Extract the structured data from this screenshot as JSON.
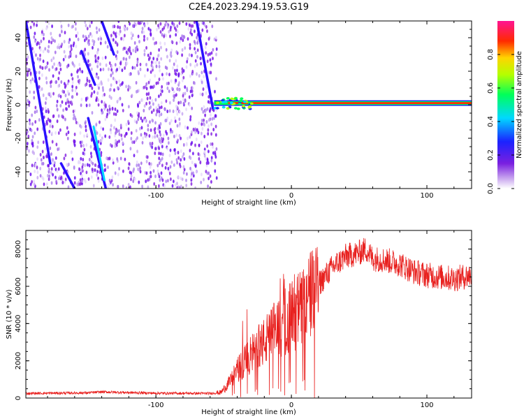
{
  "figure_title": "C2E4.2023.294.19.53.G19",
  "chart_data": [
    {
      "type": "heatmap",
      "xlabel": "Height of straight line (km)",
      "ylabel": "Frequency (Hz)",
      "xlim": [
        -196,
        133
      ],
      "ylim": [
        -50,
        50
      ],
      "x_ticks": [
        -100,
        0,
        100
      ],
      "y_ticks": [
        -40,
        -20,
        0,
        20,
        40
      ],
      "tick_labels_x": [
        "-100",
        "0",
        "100"
      ],
      "tick_labels_y": [
        "-40",
        "-20",
        "0",
        "20",
        "40"
      ],
      "colorbar": {
        "label": "Normalized spectral amplitude",
        "range": [
          0,
          1
        ],
        "ticks": [
          "0.0",
          "0.2",
          "0.4",
          "0.6",
          "0.8"
        ],
        "tick_values": [
          0,
          0.2,
          0.4,
          0.6,
          0.8
        ]
      },
      "noise_region_x": [
        -196,
        -55
      ],
      "streaks": [
        {
          "x": [
            -196,
            -178
          ],
          "y": [
            50,
            -35
          ]
        },
        {
          "x": [
            -170,
            -160
          ],
          "y": [
            -35,
            -50
          ]
        },
        {
          "x": [
            -155,
            -145
          ],
          "y": [
            32,
            12
          ]
        },
        {
          "x": [
            -150,
            -137
          ],
          "y": [
            -8,
            -50
          ]
        },
        {
          "x": [
            -140,
            -131
          ],
          "y": [
            50,
            30
          ]
        },
        {
          "x": [
            -70,
            -58
          ],
          "y": [
            50,
            -2
          ]
        }
      ],
      "carrier": {
        "x": [
          -57,
          133
        ],
        "frequency": 1
      },
      "colors": {
        "low": "#8a2be2",
        "mid": "#00e5ff",
        "high": "#ff0000"
      }
    },
    {
      "type": "line",
      "xlabel": "Height of straight line (km)",
      "ylabel": "SNR (10 * v/v)",
      "xlim": [
        -196,
        133
      ],
      "ylim": [
        0,
        9000
      ],
      "x_ticks": [
        -100,
        0,
        100
      ],
      "y_ticks": [
        0,
        2000,
        4000,
        6000,
        8000
      ],
      "tick_labels_x": [
        "-100",
        "0",
        "100"
      ],
      "tick_labels_y": [
        "0",
        "2000",
        "4000",
        "6000",
        "8000"
      ],
      "series_color": "#e8201e",
      "trend": {
        "x": [
          -196,
          -150,
          -140,
          -100,
          -60,
          -52,
          -45,
          -40,
          -30,
          -20,
          -10,
          0,
          10,
          20,
          30,
          40,
          50,
          55,
          60,
          70,
          80,
          90,
          100,
          110,
          120,
          133
        ],
        "y": [
          250,
          280,
          330,
          260,
          250,
          300,
          900,
          1500,
          2300,
          3000,
          3800,
          4400,
          5000,
          6100,
          7000,
          7600,
          7800,
          8000,
          7500,
          7400,
          7200,
          6800,
          6600,
          6500,
          6400,
          6600
        ]
      }
    }
  ]
}
